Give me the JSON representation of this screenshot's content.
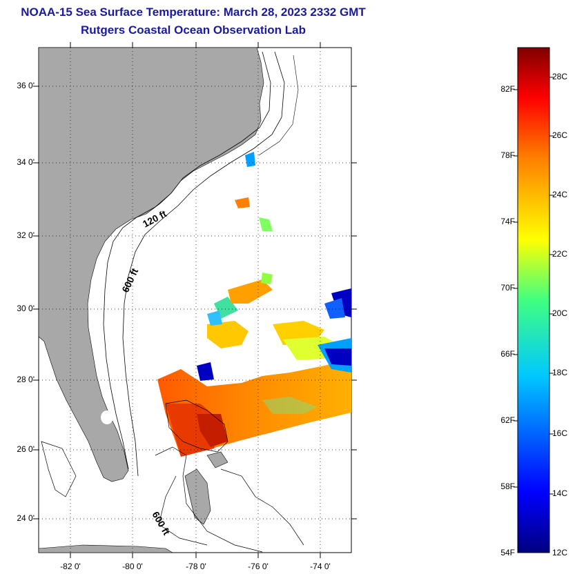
{
  "title_line1": "NOAA-15 Sea Surface Temperature:  March 28, 2023 2332 GMT",
  "title_line2": "Rutgers Coastal Ocean Observation Lab",
  "colors": {
    "title": "#1a1aa0",
    "land": "#a8a8a8",
    "warm": "#ff6a00",
    "cold": "#0000a0"
  },
  "lat_labels": [
    "36 0'",
    "34 0'",
    "32 0'",
    "30 0'",
    "28 0'",
    "26 0'",
    "24 0'"
  ],
  "lon_labels": [
    "-82 0'",
    "-80 0'",
    "-78 0'",
    "-76 0'",
    "-74 0'"
  ],
  "contours": [
    "120 ft",
    "600 ft",
    "600 ft"
  ],
  "colorbar": {
    "fahrenheit": [
      "82F",
      "78F",
      "74F",
      "70F",
      "66F",
      "62F",
      "58F",
      "54F"
    ],
    "celsius": [
      "28C",
      "26C",
      "24C",
      "22C",
      "20C",
      "18C",
      "16C",
      "14C",
      "12C"
    ]
  }
}
